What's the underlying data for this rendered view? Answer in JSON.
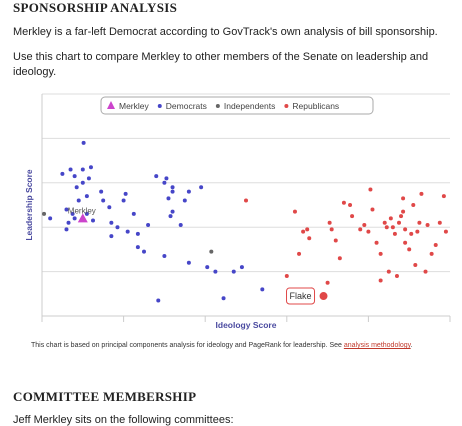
{
  "sponsorship": {
    "heading": "SPONSORSHIP ANALYSIS",
    "para1": "Merkley is a far-left Democrat according to GovTrack's own analysis of bill sponsorship.",
    "para2": "Use this chart to compare Merkley to other members of the Senate on leadership and ideology."
  },
  "chart_data": {
    "type": "scatter",
    "title": "",
    "xlabel": "Ideology Score",
    "ylabel": "Leadership Score",
    "xlim": [
      0,
      1
    ],
    "ylim": [
      0,
      1
    ],
    "grid": true,
    "legend_position": "top",
    "legend": [
      {
        "label": "Merkley",
        "symbol": "triangle",
        "color": "#cc44cc"
      },
      {
        "label": "Democrats",
        "symbol": "dot",
        "color": "#4646c8"
      },
      {
        "label": "Independents",
        "symbol": "dot",
        "color": "#666666"
      },
      {
        "label": "Republicans",
        "symbol": "dot",
        "color": "#e04848"
      }
    ],
    "highlight": {
      "label": "Merkley",
      "x": 0.1,
      "y": 0.44,
      "color": "#cc44cc"
    },
    "callout": {
      "label": "Flake",
      "x": 0.69,
      "y": 0.09,
      "color": "#e04848"
    },
    "series": [
      {
        "name": "Democrats",
        "color": "#4646c8",
        "points": [
          [
            0.102,
            0.78
          ],
          [
            0.07,
            0.66
          ],
          [
            0.05,
            0.64
          ],
          [
            0.08,
            0.63
          ],
          [
            0.1,
            0.66
          ],
          [
            0.12,
            0.67
          ],
          [
            0.115,
            0.62
          ],
          [
            0.085,
            0.58
          ],
          [
            0.1,
            0.6
          ],
          [
            0.11,
            0.54
          ],
          [
            0.09,
            0.52
          ],
          [
            0.06,
            0.48
          ],
          [
            0.075,
            0.46
          ],
          [
            0.11,
            0.46
          ],
          [
            0.145,
            0.56
          ],
          [
            0.15,
            0.52
          ],
          [
            0.165,
            0.49
          ],
          [
            0.17,
            0.42
          ],
          [
            0.185,
            0.4
          ],
          [
            0.21,
            0.38
          ],
          [
            0.235,
            0.31
          ],
          [
            0.06,
            0.39
          ],
          [
            0.02,
            0.44
          ],
          [
            0.08,
            0.44
          ],
          [
            0.065,
            0.42
          ],
          [
            0.125,
            0.43
          ],
          [
            0.17,
            0.36
          ],
          [
            0.25,
            0.29
          ],
          [
            0.3,
            0.27
          ],
          [
            0.2,
            0.52
          ],
          [
            0.205,
            0.55
          ],
          [
            0.225,
            0.46
          ],
          [
            0.235,
            0.37
          ],
          [
            0.26,
            0.41
          ],
          [
            0.305,
            0.62
          ],
          [
            0.32,
            0.58
          ],
          [
            0.31,
            0.53
          ],
          [
            0.35,
            0.52
          ],
          [
            0.32,
            0.47
          ],
          [
            0.315,
            0.45
          ],
          [
            0.34,
            0.41
          ],
          [
            0.39,
            0.58
          ],
          [
            0.36,
            0.24
          ],
          [
            0.405,
            0.22
          ],
          [
            0.285,
            0.07
          ],
          [
            0.445,
            0.08
          ],
          [
            0.47,
            0.2
          ],
          [
            0.49,
            0.22
          ],
          [
            0.32,
            0.56
          ],
          [
            0.36,
            0.56
          ],
          [
            0.425,
            0.2
          ],
          [
            0.54,
            0.12
          ],
          [
            0.3,
            0.6
          ],
          [
            0.28,
            0.63
          ]
        ]
      },
      {
        "name": "Independents",
        "color": "#666666",
        "points": [
          [
            0.005,
            0.46
          ],
          [
            0.415,
            0.29
          ]
        ]
      },
      {
        "name": "Republicans",
        "color": "#e04848",
        "points": [
          [
            0.5,
            0.52
          ],
          [
            0.62,
            0.47
          ],
          [
            0.64,
            0.38
          ],
          [
            0.65,
            0.39
          ],
          [
            0.655,
            0.35
          ],
          [
            0.63,
            0.28
          ],
          [
            0.705,
            0.42
          ],
          [
            0.71,
            0.39
          ],
          [
            0.72,
            0.34
          ],
          [
            0.73,
            0.26
          ],
          [
            0.74,
            0.51
          ],
          [
            0.755,
            0.5
          ],
          [
            0.76,
            0.45
          ],
          [
            0.78,
            0.39
          ],
          [
            0.79,
            0.41
          ],
          [
            0.8,
            0.38
          ],
          [
            0.805,
            0.57
          ],
          [
            0.81,
            0.48
          ],
          [
            0.82,
            0.33
          ],
          [
            0.83,
            0.28
          ],
          [
            0.84,
            0.42
          ],
          [
            0.845,
            0.4
          ],
          [
            0.855,
            0.44
          ],
          [
            0.86,
            0.4
          ],
          [
            0.865,
            0.37
          ],
          [
            0.875,
            0.42
          ],
          [
            0.88,
            0.45
          ],
          [
            0.885,
            0.53
          ],
          [
            0.885,
            0.47
          ],
          [
            0.89,
            0.39
          ],
          [
            0.89,
            0.33
          ],
          [
            0.9,
            0.3
          ],
          [
            0.905,
            0.37
          ],
          [
            0.91,
            0.5
          ],
          [
            0.915,
            0.23
          ],
          [
            0.925,
            0.42
          ],
          [
            0.93,
            0.55
          ],
          [
            0.945,
            0.41
          ],
          [
            0.955,
            0.28
          ],
          [
            0.965,
            0.32
          ],
          [
            0.975,
            0.42
          ],
          [
            0.985,
            0.54
          ],
          [
            0.99,
            0.38
          ],
          [
            0.85,
            0.2
          ],
          [
            0.87,
            0.18
          ],
          [
            0.83,
            0.16
          ],
          [
            0.7,
            0.15
          ],
          [
            0.66,
            0.12
          ],
          [
            0.94,
            0.2
          ],
          [
            0.6,
            0.18
          ],
          [
            0.92,
            0.38
          ]
        ]
      }
    ]
  },
  "footnote": {
    "text": "This chart is based on principal components analysis for ideology and PageRank for leadership. See ",
    "link": "analysis methodology",
    "end": "."
  },
  "committee": {
    "heading": "COMMITTEE MEMBERSHIP",
    "intro": "Jeff Merkley sits on the following committees:"
  }
}
